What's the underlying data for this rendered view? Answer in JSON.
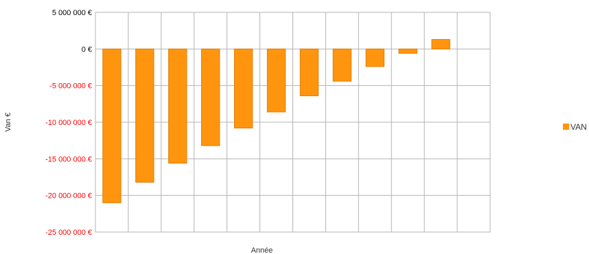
{
  "chart_data": {
    "type": "bar",
    "title": "",
    "xlabel": "Année",
    "ylabel": "Van €",
    "ylim": [
      -25000000,
      5000000
    ],
    "yticks": [
      5000000,
      0,
      -5000000,
      -10000000,
      -15000000,
      -20000000,
      -25000000
    ],
    "ytick_labels": [
      "5 000 000 €",
      "0 €",
      "-5 000 000 €",
      "-10 000 000 €",
      "-15 000 000 €",
      "-20 000 000 €",
      "-25 000 000 €"
    ],
    "categories": [
      "",
      "",
      "",
      "",
      "",
      "",
      "",
      "",
      "",
      "",
      "",
      ""
    ],
    "series": [
      {
        "name": "VAN",
        "color": "#ff950e",
        "values": [
          -21000000,
          -18200000,
          -15600000,
          -13200000,
          -10800000,
          -8600000,
          -6400000,
          -4400000,
          -2400000,
          -600000,
          1300000,
          null
        ]
      }
    ],
    "grid": true,
    "legend_position": "right",
    "negative_label_color": "#ff0000",
    "positive_label_color": "#000000"
  }
}
